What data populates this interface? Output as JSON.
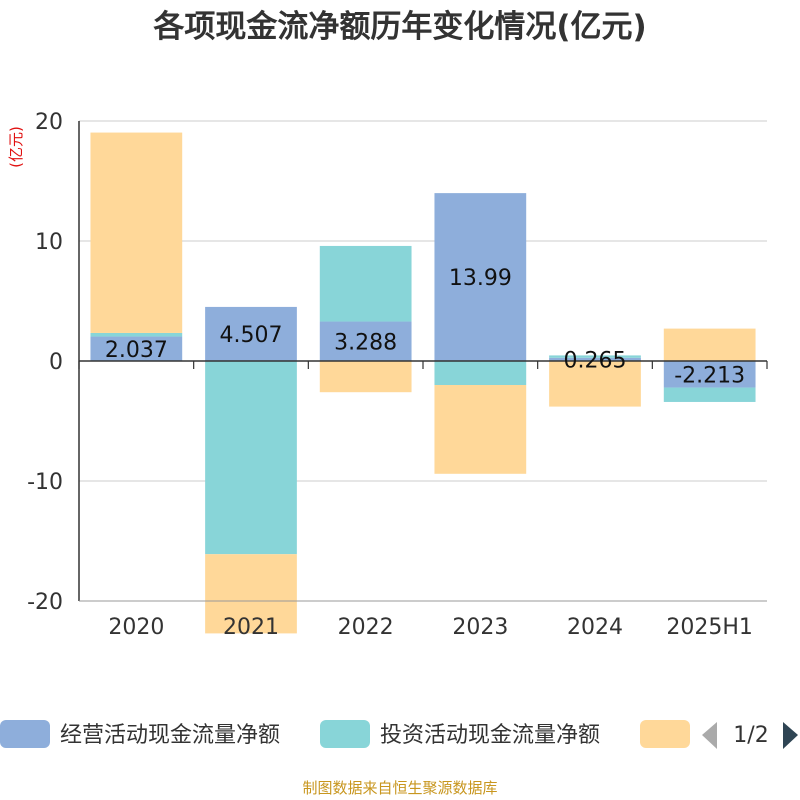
{
  "title": "各项现金流净额历年变化情况(亿元)",
  "source": "制图数据来自恒生聚源数据库",
  "chart_data": {
    "type": "bar",
    "stacked": true,
    "unit_label": "(亿元)",
    "categories": [
      "2020",
      "2021",
      "2022",
      "2023",
      "2024",
      "2025H1"
    ],
    "ylim": [
      -20,
      20
    ],
    "yticks": [
      "20",
      "10",
      "0",
      "-10",
      "-20"
    ],
    "grid": true,
    "series": [
      {
        "name": "经营活动现金流量净额",
        "color": "#8eaedb",
        "values": [
          2.037,
          4.507,
          3.288,
          13.99,
          0.265,
          -2.213
        ],
        "labels": [
          "2.037",
          "4.507",
          "3.288",
          "13.99",
          "0.265",
          "-2.213"
        ]
      },
      {
        "name": "投资活动现金流量净额",
        "color": "#88d5d8",
        "values": [
          0.3,
          -16.1,
          6.3,
          -2.0,
          0.2,
          -1.2
        ]
      },
      {
        "name": "",
        "color": "#ffd899",
        "values": [
          16.7,
          -6.6,
          -2.6,
          -7.4,
          -3.8,
          2.7
        ]
      }
    ],
    "legend": {
      "position": "bottom",
      "page": "1/2"
    }
  }
}
